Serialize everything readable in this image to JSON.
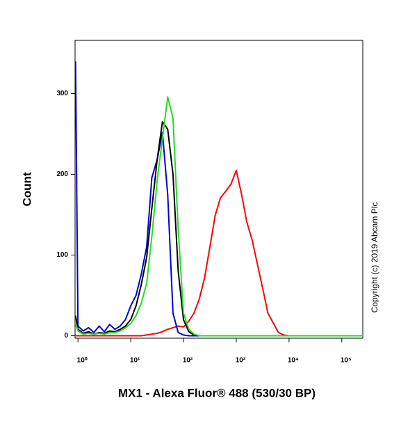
{
  "chart_data": {
    "type": "line",
    "log_x": true,
    "xlabel": "MX1 - Alexa Fluor® 488 (530/30 BP)",
    "ylabel": "Count",
    "annotation": "Copyright (c) 2019 Abcam Plc",
    "x": [
      0.9,
      1,
      1.26,
      1.58,
      2,
      2.51,
      3.16,
      3.98,
      5.01,
      6.31,
      7.94,
      10,
      12.6,
      15.8,
      20,
      25.1,
      31.6,
      39.8,
      50.1,
      63.1,
      79.4,
      100,
      126,
      158,
      200,
      251,
      316,
      398,
      501,
      631,
      794,
      1000,
      1259,
      1585,
      1995,
      2512,
      3162,
      3981,
      5012,
      6310,
      7943,
      10000,
      100000,
      250000
    ],
    "series": [
      {
        "color": "#ff0000",
        "values": [
          0,
          0,
          0,
          0,
          0,
          0,
          0,
          0,
          0,
          0,
          0,
          0,
          0,
          0,
          1,
          2,
          3,
          5,
          8,
          10,
          12,
          11,
          18,
          28,
          46,
          72,
          110,
          149,
          171,
          179,
          188,
          205,
          175,
          141,
          119,
          89,
          59,
          28,
          16,
          4,
          1,
          0,
          0,
          0
        ]
      },
      {
        "color": "#0000cc",
        "values": [
          340,
          12,
          6,
          10,
          4,
          12,
          5,
          14,
          8,
          12,
          20,
          37,
          50,
          76,
          110,
          196,
          218,
          252,
          175,
          28,
          4,
          1,
          0,
          0,
          0,
          0,
          0,
          0,
          0,
          0,
          0,
          0,
          0,
          0,
          0,
          0,
          0,
          0,
          0,
          0,
          0,
          0,
          0,
          0
        ]
      },
      {
        "color": "#000000",
        "values": [
          25,
          8,
          3,
          5,
          2,
          4,
          3,
          6,
          5,
          8,
          12,
          20,
          37,
          63,
          97,
          158,
          218,
          265,
          256,
          200,
          80,
          20,
          5,
          1,
          0,
          0,
          0,
          0,
          0,
          0,
          0,
          0,
          0,
          0,
          0,
          0,
          0,
          0,
          0,
          0,
          0,
          0,
          0,
          0
        ]
      },
      {
        "color": "#22dd22",
        "values": [
          15,
          6,
          2,
          3,
          2,
          3,
          2,
          4,
          4,
          6,
          10,
          15,
          25,
          40,
          65,
          123,
          192,
          244,
          296,
          270,
          132,
          28,
          8,
          2,
          0,
          0,
          0,
          0,
          0,
          0,
          0,
          0,
          0,
          0,
          0,
          0,
          0,
          0,
          0,
          0,
          0,
          0,
          0,
          0
        ]
      }
    ],
    "xlim": [
      0.88,
      250000
    ],
    "ylim": [
      -3,
      366
    ],
    "xticks": [
      {
        "value": 1,
        "label": "10⁰"
      },
      {
        "value": 10,
        "label": "10¹"
      },
      {
        "value": 100,
        "label": "10²"
      },
      {
        "value": 1000,
        "label": "10³"
      },
      {
        "value": 10000,
        "label": "10⁴"
      },
      {
        "value": 100000,
        "label": "10⁵"
      }
    ],
    "yticks": [
      0,
      100,
      200,
      300
    ]
  }
}
